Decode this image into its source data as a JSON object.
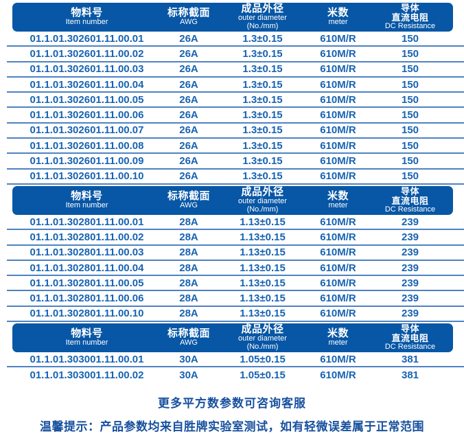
{
  "colors": {
    "page_bg": "#ffffff",
    "header_bg": "#0857a6",
    "header_text": "#ffffff",
    "row_text": "#1763b2",
    "divider": "#4e82c2",
    "footer_text": "#17509e"
  },
  "table": {
    "columns": [
      {
        "id": "item_number",
        "lines": [
          {
            "text": "物料号",
            "style": "zh"
          },
          {
            "text": "Item number",
            "style": "en"
          }
        ]
      },
      {
        "id": "awg",
        "lines": [
          {
            "text": "标称截面",
            "style": "zh"
          },
          {
            "text": "AWG",
            "style": "en"
          }
        ]
      },
      {
        "id": "outer_diameter",
        "lines": [
          {
            "text": "成品外径",
            "style": "zh"
          },
          {
            "text": "outer diameter",
            "style": "en"
          },
          {
            "text": "(No./mm)",
            "style": "en"
          }
        ]
      },
      {
        "id": "meter",
        "lines": [
          {
            "text": "米数",
            "style": "zh"
          },
          {
            "text": "meter",
            "style": "en"
          }
        ]
      },
      {
        "id": "dc_resistance",
        "lines": [
          {
            "text": "导体",
            "style": "zh-sm"
          },
          {
            "text": "直流电阻",
            "style": "zh-sm"
          },
          {
            "text": "DC Resistance",
            "style": "en"
          }
        ]
      }
    ],
    "sections": [
      {
        "rows": [
          [
            "01.1.01.302601.11.00.01",
            "26A",
            "1.3±0.15",
            "610M/R",
            "150"
          ],
          [
            "01.1.01.302601.11.00.02",
            "26A",
            "1.3±0.15",
            "610M/R",
            "150"
          ],
          [
            "01.1.01.302601.11.00.03",
            "26A",
            "1.3±0.15",
            "610M/R",
            "150"
          ],
          [
            "01.1.01.302601.11.00.04",
            "26A",
            "1.3±0.15",
            "610M/R",
            "150"
          ],
          [
            "01.1.01.302601.11.00.05",
            "26A",
            "1.3±0.15",
            "610M/R",
            "150"
          ],
          [
            "01.1.01.302601.11.00.06",
            "26A",
            "1.3±0.15",
            "610M/R",
            "150"
          ],
          [
            "01.1.01.302601.11.00.07",
            "26A",
            "1.3±0.15",
            "610M/R",
            "150"
          ],
          [
            "01.1.01.302601.11.00.08",
            "26A",
            "1.3±0.15",
            "610M/R",
            "150"
          ],
          [
            "01.1.01.302601.11.00.09",
            "26A",
            "1.3±0.15",
            "610M/R",
            "150"
          ],
          [
            "01.1.01.302601.11.00.10",
            "26A",
            "1.3±0.15",
            "610M/R",
            "150"
          ]
        ]
      },
      {
        "rows": [
          [
            "01.1.01.302801.11.00.01",
            "28A",
            "1.13±0.15",
            "610M/R",
            "239"
          ],
          [
            "01.1.01.302801.11.00.02",
            "28A",
            "1.13±0.15",
            "610M/R",
            "239"
          ],
          [
            "01.1.01.302801.11.00.03",
            "28A",
            "1.13±0.15",
            "610M/R",
            "239"
          ],
          [
            "01.1.01.302801.11.00.04",
            "28A",
            "1.13±0.15",
            "610M/R",
            "239"
          ],
          [
            "01.1.01.302801.11.00.05",
            "28A",
            "1.13±0.15",
            "610M/R",
            "239"
          ],
          [
            "01.1.01.302801.11.00.06",
            "28A",
            "1.13±0.15",
            "610M/R",
            "239"
          ],
          [
            "01.1.01.302801.11.00.10",
            "28A",
            "1.13±0.15",
            "610M/R",
            "239"
          ]
        ]
      },
      {
        "rows": [
          [
            "01.1.01.303001.11.00.01",
            "30A",
            "1.05±0.15",
            "610M/R",
            "381"
          ],
          [
            "01.1.01.303001.11.00.02",
            "30A",
            "1.05±0.15",
            "610M/R",
            "381"
          ]
        ]
      }
    ]
  },
  "footer": {
    "line1": "更多平方数参数可咨询客服",
    "line2": "温馨提示：产品参数均来自胜牌实验室测试，如有轻微误差属于正常范围"
  }
}
